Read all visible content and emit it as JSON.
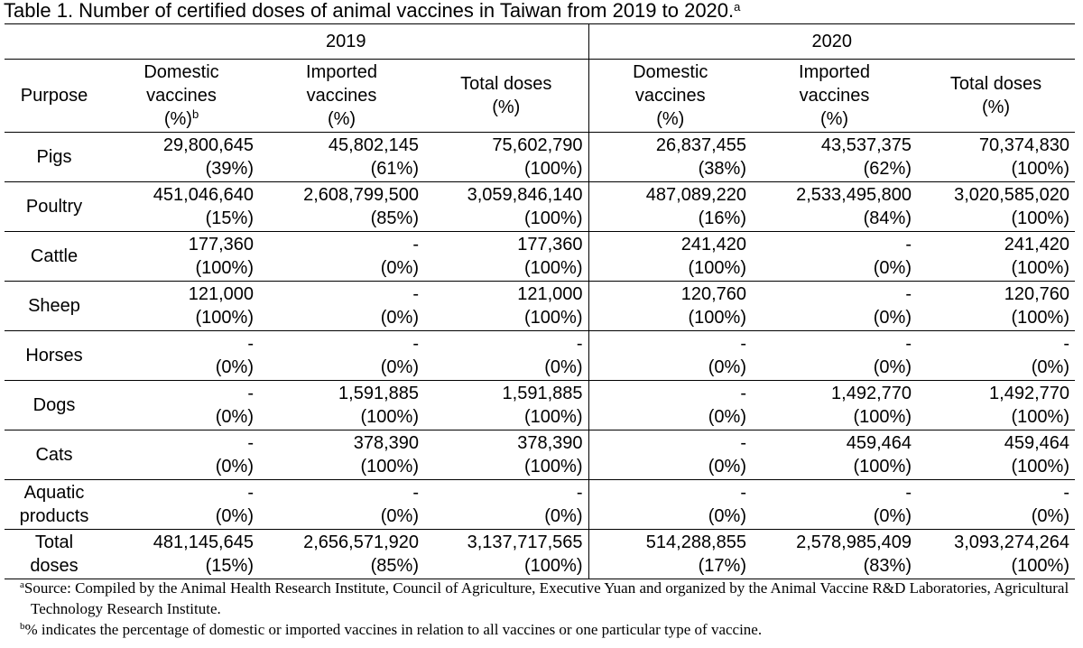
{
  "title": {
    "text": "Table 1. Number of certified doses of animal vaccines in Taiwan from 2019 to 2020.",
    "sup": "a"
  },
  "years": [
    "2019",
    "2020"
  ],
  "headers": {
    "purpose": "Purpose",
    "domestic_line1": "Domestic",
    "domestic_line2": "vaccines",
    "domestic_line3": "(%)",
    "domestic_sup": "b",
    "imported_line1": "Imported",
    "imported_line2": "vaccines",
    "imported_line3": "(%)",
    "total_line1": "Total doses",
    "total_line2": "(%)"
  },
  "rows": [
    {
      "purpose": [
        "Pigs",
        ""
      ],
      "cells": [
        [
          "29,800,645",
          "(39%)"
        ],
        [
          "45,802,145",
          "(61%)"
        ],
        [
          "75,602,790",
          "(100%)"
        ],
        [
          "26,837,455",
          "(38%)"
        ],
        [
          "43,537,375",
          "(62%)"
        ],
        [
          "70,374,830",
          "(100%)"
        ]
      ]
    },
    {
      "purpose": [
        "Poultry",
        ""
      ],
      "cells": [
        [
          "451,046,640",
          "(15%)"
        ],
        [
          "2,608,799,500",
          "(85%)"
        ],
        [
          "3,059,846,140",
          "(100%)"
        ],
        [
          "487,089,220",
          "(16%)"
        ],
        [
          "2,533,495,800",
          "(84%)"
        ],
        [
          "3,020,585,020",
          "(100%)"
        ]
      ]
    },
    {
      "purpose": [
        "Cattle",
        ""
      ],
      "cells": [
        [
          "177,360",
          "(100%)"
        ],
        [
          "-",
          "(0%)"
        ],
        [
          "177,360",
          "(100%)"
        ],
        [
          "241,420",
          "(100%)"
        ],
        [
          "-",
          "(0%)"
        ],
        [
          "241,420",
          "(100%)"
        ]
      ]
    },
    {
      "purpose": [
        "Sheep",
        ""
      ],
      "cells": [
        [
          "121,000",
          "(100%)"
        ],
        [
          "-",
          "(0%)"
        ],
        [
          "121,000",
          "(100%)"
        ],
        [
          "120,760",
          "(100%)"
        ],
        [
          "-",
          "(0%)"
        ],
        [
          "120,760",
          "(100%)"
        ]
      ]
    },
    {
      "purpose": [
        "Horses",
        ""
      ],
      "cells": [
        [
          "-",
          "(0%)"
        ],
        [
          "-",
          "(0%)"
        ],
        [
          "-",
          "(0%)"
        ],
        [
          "-",
          "(0%)"
        ],
        [
          "-",
          "(0%)"
        ],
        [
          "-",
          "(0%)"
        ]
      ]
    },
    {
      "purpose": [
        "Dogs",
        ""
      ],
      "cells": [
        [
          "-",
          "(0%)"
        ],
        [
          "1,591,885",
          "(100%)"
        ],
        [
          "1,591,885",
          "(100%)"
        ],
        [
          "-",
          "(0%)"
        ],
        [
          "1,492,770",
          "(100%)"
        ],
        [
          "1,492,770",
          "(100%)"
        ]
      ]
    },
    {
      "purpose": [
        "Cats",
        ""
      ],
      "cells": [
        [
          "-",
          "(0%)"
        ],
        [
          "378,390",
          "(100%)"
        ],
        [
          "378,390",
          "(100%)"
        ],
        [
          "-",
          "(0%)"
        ],
        [
          "459,464",
          "(100%)"
        ],
        [
          "459,464",
          "(100%)"
        ]
      ]
    },
    {
      "purpose": [
        "Aquatic",
        "products"
      ],
      "cells": [
        [
          "-",
          "(0%)"
        ],
        [
          "-",
          "(0%)"
        ],
        [
          "-",
          "(0%)"
        ],
        [
          "-",
          "(0%)"
        ],
        [
          "-",
          "(0%)"
        ],
        [
          "-",
          "(0%)"
        ]
      ]
    },
    {
      "purpose": [
        "Total",
        "doses"
      ],
      "cells": [
        [
          "481,145,645",
          "(15%)"
        ],
        [
          "2,656,571,920",
          "(85%)"
        ],
        [
          "3,137,717,565",
          "(100%)"
        ],
        [
          "514,288,855",
          "(17%)"
        ],
        [
          "2,578,985,409",
          "(83%)"
        ],
        [
          "3,093,274,264",
          "(100%)"
        ]
      ]
    }
  ],
  "notes": {
    "a_sup": "a",
    "a_text": "Source: Compiled by the Animal Health Research Institute, Council of Agriculture, Executive Yuan and organized by the Animal Vaccine R&D Laboratories, Agricultural Technology Research Institute.",
    "b_sup": "b",
    "b_text": "% indicates the percentage of domestic or imported vaccines in relation to all vaccines or one particular type of vaccine."
  }
}
